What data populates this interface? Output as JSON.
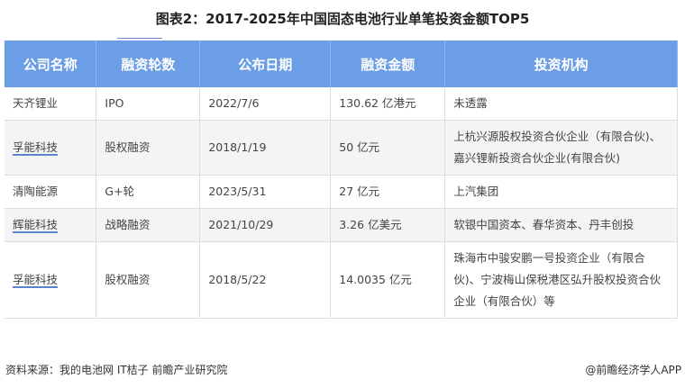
{
  "title": "图表2：2017-2025年中国固态电池行业单笔投资金额TOP5",
  "table": {
    "headers": [
      "公司名称",
      "融资轮数",
      "公布日期",
      "融资金额",
      "投资机构"
    ],
    "rows": [
      {
        "company": "天齐锂业",
        "round": "IPO",
        "date": "2022/7/6",
        "amount": "130.62 亿港元",
        "investors": "未透露"
      },
      {
        "company": "孚能科技",
        "round": "股权融资",
        "date": "2018/1/19",
        "amount": "50 亿元",
        "investors": "上杭兴源股权投资合伙企业（有限合伙)、嘉兴锂新投资合伙企业(有限合伙)"
      },
      {
        "company": "清陶能源",
        "round": "G+轮",
        "date": "2023/5/31",
        "amount": "27 亿元",
        "investors": "上汽集团"
      },
      {
        "company": "辉能科技",
        "round": "战略融资",
        "date": "2021/10/29",
        "amount": "3.26 亿美元",
        "investors": "软银中国资本、春华资本、丹丰创投"
      },
      {
        "company": "孚能科技",
        "round": "股权融资",
        "date": "2018/5/22",
        "amount": "14.0035 亿元",
        "investors": "珠海市中骏安鹏一号投资企业（有限合伙)、宁波梅山保税港区弘升股权投资合伙企业（有限合伙）等"
      }
    ]
  },
  "footer": {
    "source": "资料来源：我的电池网 IT桔子 前瞻产业研究院",
    "brand": "@前瞻经济学人APP"
  },
  "colors": {
    "header_bg": "#6b9ee6"
  }
}
